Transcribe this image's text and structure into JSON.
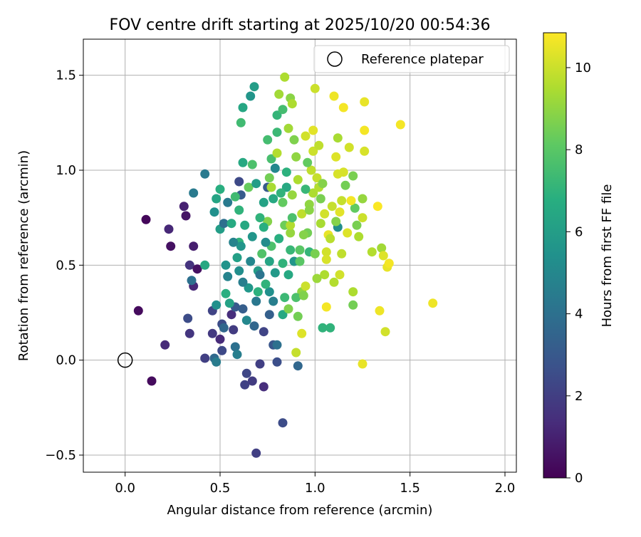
{
  "chart_data": {
    "type": "scatter",
    "title": "FOV centre drift starting at 2025/10/20 00:54:36",
    "xlabel": "Angular distance from reference (arcmin)",
    "ylabel": "Rotation from reference (arcmin)",
    "xlim": [
      -0.22,
      2.06
    ],
    "ylim": [
      -0.59,
      1.69
    ],
    "xticks": [
      0.0,
      0.5,
      1.0,
      1.5,
      2.0
    ],
    "xtick_labels": [
      "0.0",
      "0.5",
      "1.0",
      "1.5",
      "2.0"
    ],
    "yticks": [
      -0.5,
      0.0,
      0.5,
      1.0,
      1.5
    ],
    "ytick_labels": [
      "−0.5",
      "0.0",
      "0.5",
      "1.0",
      "1.5"
    ],
    "grid": true,
    "legend": {
      "position": "upper right",
      "entries": [
        {
          "label": "Reference platepar",
          "marker": "open-circle"
        }
      ]
    },
    "reference_point": {
      "x": 0.0,
      "y": 0.0
    },
    "colorbar": {
      "label": "Hours from first FF file",
      "range": [
        0,
        10.85
      ],
      "ticks": [
        0,
        2,
        4,
        6,
        8,
        10
      ],
      "tick_labels": [
        "0",
        "2",
        "4",
        "6",
        "8",
        "10"
      ],
      "colormap": "viridis"
    },
    "points": [
      [
        0.11,
        0.74,
        0.2
      ],
      [
        0.07,
        0.26,
        0.3
      ],
      [
        0.14,
        -0.11,
        0.3
      ],
      [
        0.24,
        0.6,
        0.5
      ],
      [
        0.23,
        0.69,
        1.2
      ],
      [
        0.21,
        0.08,
        1.3
      ],
      [
        0.32,
        0.76,
        0.6
      ],
      [
        0.31,
        0.81,
        1.0
      ],
      [
        0.36,
        0.6,
        0.9
      ],
      [
        0.36,
        0.39,
        1.2
      ],
      [
        0.34,
        0.5,
        1.6
      ],
      [
        0.38,
        0.48,
        0.5
      ],
      [
        0.33,
        0.22,
        2.5
      ],
      [
        0.34,
        0.14,
        1.7
      ],
      [
        0.35,
        0.42,
        4.0
      ],
      [
        0.36,
        0.88,
        4.4
      ],
      [
        0.42,
        0.98,
        4.4
      ],
      [
        0.42,
        0.5,
        6.5
      ],
      [
        0.46,
        0.26,
        2.2
      ],
      [
        0.46,
        0.14,
        1.8
      ],
      [
        0.42,
        0.01,
        2.0
      ],
      [
        0.47,
        0.01,
        3.7
      ],
      [
        0.48,
        -0.01,
        4.5
      ],
      [
        0.47,
        0.78,
        5.4
      ],
      [
        0.48,
        0.85,
        6.3
      ],
      [
        0.5,
        0.9,
        6.8
      ],
      [
        0.48,
        0.29,
        5.4
      ],
      [
        0.51,
        0.19,
        2.5
      ],
      [
        0.5,
        0.11,
        1.3
      ],
      [
        0.51,
        0.05,
        2.4
      ],
      [
        0.5,
        0.69,
        6.0
      ],
      [
        0.52,
        0.72,
        4.0
      ],
      [
        0.53,
        0.5,
        5.5
      ],
      [
        0.54,
        0.44,
        4.8
      ],
      [
        0.56,
        0.24,
        1.4
      ],
      [
        0.57,
        0.16,
        1.9
      ],
      [
        0.58,
        0.07,
        4.0
      ],
      [
        0.59,
        0.03,
        4.6
      ],
      [
        0.58,
        0.28,
        3.0
      ],
      [
        0.59,
        0.54,
        6.1
      ],
      [
        0.6,
        0.62,
        7.0
      ],
      [
        0.6,
        0.94,
        2.4
      ],
      [
        0.61,
        0.87,
        3.1
      ],
      [
        0.62,
        1.04,
        6.5
      ],
      [
        0.61,
        1.25,
        7.4
      ],
      [
        0.62,
        1.33,
        6.4
      ],
      [
        0.66,
        1.39,
        5.6
      ],
      [
        0.68,
        1.44,
        6.0
      ],
      [
        0.7,
        0.36,
        6.9
      ],
      [
        0.68,
        0.18,
        3.6
      ],
      [
        0.63,
        -0.13,
        2.1
      ],
      [
        0.67,
        -0.11,
        1.9
      ],
      [
        0.64,
        -0.07,
        2.3
      ],
      [
        0.71,
        -0.02,
        2.0
      ],
      [
        0.73,
        -0.14,
        1.4
      ],
      [
        0.69,
        -0.49,
        2.0
      ],
      [
        0.83,
        -0.33,
        2.5
      ],
      [
        0.73,
        0.15,
        2.2
      ],
      [
        0.78,
        0.08,
        2.9
      ],
      [
        0.76,
        0.24,
        3.3
      ],
      [
        0.76,
        0.36,
        5.4
      ],
      [
        0.77,
        0.6,
        7.7
      ],
      [
        0.75,
        0.73,
        8.8
      ],
      [
        0.78,
        0.85,
        6.5
      ],
      [
        0.75,
        0.91,
        3.1
      ],
      [
        0.76,
        0.96,
        8.5
      ],
      [
        0.79,
        1.01,
        5.0
      ],
      [
        0.77,
        1.06,
        7.6
      ],
      [
        0.75,
        1.16,
        7.5
      ],
      [
        0.8,
        1.2,
        7.3
      ],
      [
        0.8,
        1.29,
        7.1
      ],
      [
        0.83,
        1.32,
        7.5
      ],
      [
        0.84,
        1.49,
        9.5
      ],
      [
        0.81,
        1.4,
        9.3
      ],
      [
        0.87,
        1.38,
        8.9
      ],
      [
        0.88,
        1.35,
        9.5
      ],
      [
        0.86,
        1.22,
        9.3
      ],
      [
        0.89,
        1.16,
        8.7
      ],
      [
        0.9,
        1.07,
        9.0
      ],
      [
        0.85,
        0.91,
        6.5
      ],
      [
        0.83,
        0.83,
        8.2
      ],
      [
        0.84,
        0.71,
        8.4
      ],
      [
        0.87,
        0.67,
        9.1
      ],
      [
        0.87,
        0.58,
        7.2
      ],
      [
        0.86,
        0.45,
        6.5
      ],
      [
        0.84,
        0.33,
        7.3
      ],
      [
        0.83,
        0.24,
        6.5
      ],
      [
        0.8,
        0.08,
        4.0
      ],
      [
        0.8,
        -0.01,
        2.6
      ],
      [
        0.9,
        0.04,
        9.9
      ],
      [
        0.91,
        -0.03,
        3.6
      ],
      [
        0.93,
        0.14,
        10.3
      ],
      [
        0.93,
        0.36,
        9.0
      ],
      [
        0.95,
        0.39,
        10.0
      ],
      [
        0.97,
        0.57,
        7.1
      ],
      [
        0.96,
        0.67,
        8.5
      ],
      [
        0.97,
        0.82,
        9.0
      ],
      [
        0.99,
        0.88,
        9.5
      ],
      [
        0.98,
        1.0,
        9.8
      ],
      [
        0.99,
        1.1,
        10.0
      ],
      [
        0.99,
        1.21,
        10.4
      ],
      [
        1.0,
        1.43,
        10.0
      ],
      [
        1.02,
        1.13,
        9.8
      ],
      [
        1.01,
        0.96,
        9.9
      ],
      [
        1.02,
        0.91,
        9.6
      ],
      [
        1.03,
        0.85,
        8.6
      ],
      [
        1.05,
        0.77,
        10.1
      ],
      [
        1.07,
        0.66,
        10.5
      ],
      [
        1.06,
        0.57,
        10.1
      ],
      [
        1.05,
        0.45,
        9.5
      ],
      [
        1.06,
        0.28,
        10.7
      ],
      [
        1.04,
        0.17,
        7.0
      ],
      [
        1.08,
        0.17,
        7.0
      ],
      [
        1.1,
        0.41,
        9.6
      ],
      [
        1.13,
        0.45,
        10.1
      ],
      [
        1.14,
        0.56,
        9.8
      ],
      [
        1.12,
        0.7,
        5.3
      ],
      [
        1.14,
        0.84,
        9.9
      ],
      [
        1.16,
        0.92,
        8.5
      ],
      [
        1.12,
        0.98,
        10.2
      ],
      [
        1.11,
        1.07,
        10.3
      ],
      [
        1.12,
        1.17,
        9.4
      ],
      [
        1.15,
        1.33,
        10.7
      ],
      [
        1.1,
        1.39,
        10.6
      ],
      [
        1.18,
        1.12,
        10.1
      ],
      [
        1.2,
        0.97,
        8.6
      ],
      [
        1.21,
        0.8,
        8.2
      ],
      [
        1.22,
        0.71,
        8.6
      ],
      [
        1.23,
        0.65,
        9.5
      ],
      [
        1.2,
        0.36,
        9.5
      ],
      [
        1.2,
        0.29,
        8.5
      ],
      [
        1.25,
        0.85,
        9.1
      ],
      [
        1.26,
        1.1,
        10.2
      ],
      [
        1.26,
        1.21,
        10.7
      ],
      [
        1.26,
        1.36,
        10.5
      ],
      [
        1.25,
        0.75,
        10.0
      ],
      [
        1.25,
        -0.02,
        10.5
      ],
      [
        1.3,
        0.57,
        9.6
      ],
      [
        1.33,
        0.81,
        10.8
      ],
      [
        1.34,
        0.26,
        10.6
      ],
      [
        1.35,
        0.59,
        9.3
      ],
      [
        1.36,
        0.55,
        10.3
      ],
      [
        1.37,
        0.15,
        10.1
      ],
      [
        1.38,
        0.49,
        10.5
      ],
      [
        1.39,
        0.51,
        10.7
      ],
      [
        1.45,
        1.24,
        10.7
      ],
      [
        1.62,
        0.3,
        10.6
      ],
      [
        0.87,
        0.71,
        9.6
      ],
      [
        0.91,
        0.95,
        9.5
      ],
      [
        0.93,
        0.77,
        9.8
      ],
      [
        0.95,
        1.18,
        10.1
      ],
      [
        0.72,
        0.56,
        7.8
      ],
      [
        0.74,
        0.4,
        7.0
      ],
      [
        0.7,
        0.47,
        6.0
      ],
      [
        0.69,
        0.31,
        4.3
      ],
      [
        0.66,
        0.52,
        5.0
      ],
      [
        0.65,
        0.38,
        5.7
      ],
      [
        0.64,
        0.21,
        5.0
      ],
      [
        0.62,
        0.41,
        4.6
      ],
      [
        0.61,
        0.6,
        5.6
      ],
      [
        0.6,
        0.79,
        7.0
      ],
      [
        0.58,
        0.86,
        7.4
      ],
      [
        0.56,
        0.72,
        6.6
      ],
      [
        0.55,
        0.3,
        6.2
      ],
      [
        0.53,
        0.35,
        6.8
      ],
      [
        0.52,
        0.17,
        3.6
      ],
      [
        0.54,
        0.83,
        4.4
      ],
      [
        0.57,
        0.62,
        4.8
      ],
      [
        0.63,
        0.71,
        6.5
      ],
      [
        0.65,
        0.91,
        8.3
      ],
      [
        0.67,
        1.03,
        7.7
      ],
      [
        0.69,
        0.93,
        6.0
      ],
      [
        0.71,
        0.75,
        7.0
      ],
      [
        0.73,
        0.83,
        6.2
      ],
      [
        0.74,
        0.62,
        5.2
      ],
      [
        0.76,
        0.52,
        6.3
      ],
      [
        0.78,
        0.31,
        4.6
      ],
      [
        0.79,
        0.46,
        5.8
      ],
      [
        0.81,
        0.64,
        6.8
      ],
      [
        0.82,
        0.88,
        7.0
      ],
      [
        0.85,
        0.99,
        6.9
      ],
      [
        0.88,
        0.75,
        7.7
      ],
      [
        0.89,
        0.52,
        5.6
      ],
      [
        0.9,
        0.33,
        7.7
      ],
      [
        0.91,
        0.23,
        8.5
      ],
      [
        0.92,
        0.52,
        8.0
      ],
      [
        0.94,
        0.66,
        8.8
      ],
      [
        0.95,
        0.9,
        7.2
      ],
      [
        0.96,
        1.04,
        8.2
      ],
      [
        0.97,
        0.79,
        8.9
      ],
      [
        1.0,
        0.56,
        8.6
      ],
      [
        1.01,
        0.43,
        9.2
      ],
      [
        1.03,
        0.72,
        9.4
      ],
      [
        1.04,
        0.93,
        8.8
      ],
      [
        1.06,
        0.53,
        10.2
      ],
      [
        1.08,
        0.64,
        9.7
      ],
      [
        1.09,
        0.81,
        9.9
      ],
      [
        1.11,
        0.73,
        8.8
      ],
      [
        1.13,
        0.78,
        10.4
      ],
      [
        1.15,
        0.99,
        10.2
      ],
      [
        1.17,
        0.67,
        10.3
      ],
      [
        1.19,
        0.84,
        10.7
      ],
      [
        0.6,
        0.47,
        5.3
      ],
      [
        0.62,
        0.27,
        3.2
      ],
      [
        0.67,
        0.65,
        5.6
      ],
      [
        0.71,
        0.45,
        4.2
      ],
      [
        0.73,
        0.7,
        6.8
      ],
      [
        0.77,
        0.91,
        9.4
      ],
      [
        0.8,
        1.09,
        9.6
      ],
      [
        0.83,
        0.51,
        7.0
      ],
      [
        0.86,
        0.27,
        8.7
      ],
      [
        0.88,
        0.87,
        9.1
      ],
      [
        0.92,
        0.58,
        8.0
      ],
      [
        0.94,
        0.34,
        8.7
      ]
    ]
  }
}
